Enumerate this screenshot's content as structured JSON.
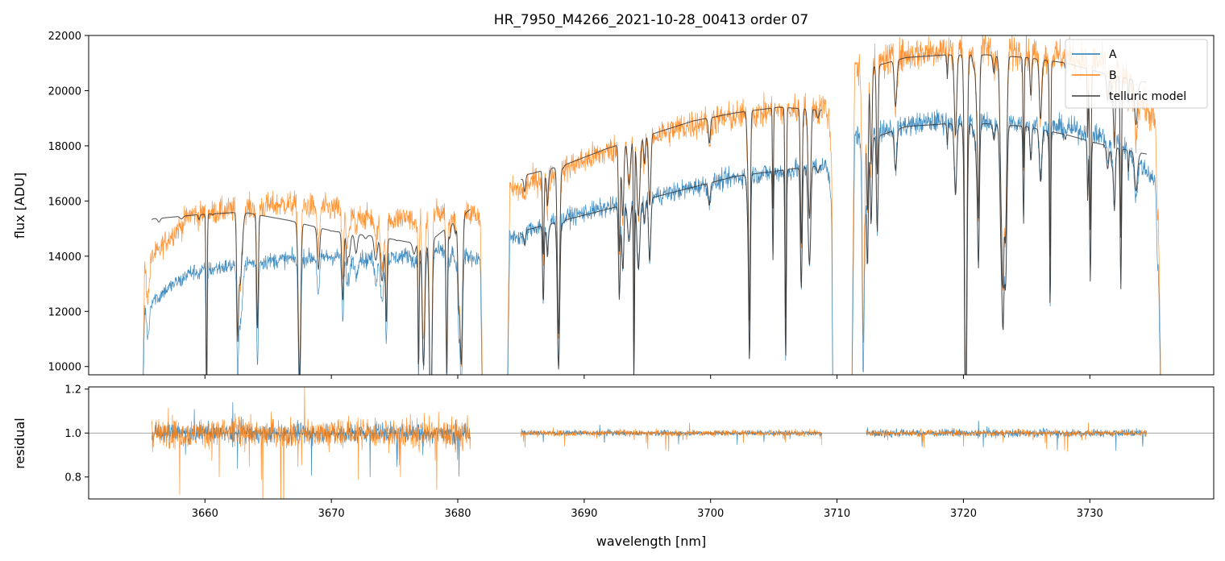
{
  "chart_data": {
    "type": "line",
    "title": "HR_7950_M4266_2021-10-28_00413  order 07",
    "colors": {
      "A": "#1f77b4",
      "B": "#ff7f0e",
      "telluric": "#3a3a3a",
      "refline": "#888888",
      "axis": "#000000"
    },
    "top": {
      "ylabel": "flux [ADU]",
      "xlim": [
        3650.8,
        3739.8
      ],
      "ylim": [
        9700,
        22000
      ],
      "yticks": [
        10000,
        12000,
        14000,
        16000,
        18000,
        20000,
        22000
      ],
      "ytick_labels": [
        "10000",
        "12000",
        "14000",
        "16000",
        "18000",
        "20000",
        "22000"
      ],
      "segments": [
        {
          "x": [
            3654.9,
            3682.1
          ],
          "A_base": [
            12100,
            13400,
            13700,
            13900,
            14000,
            13900,
            14200,
            13900
          ],
          "B_base": [
            13500,
            15500,
            15700,
            15900,
            15700,
            15300,
            15600,
            15500
          ],
          "telluric": [
            15350,
            15500,
            15600,
            15300,
            14900,
            14700,
            14400,
            15700
          ],
          "tel_x": [
            3655.8,
            3681.0
          ]
        },
        {
          "x": [
            3683.8,
            3709.9
          ],
          "A_base": [
            14600,
            15300,
            15700,
            16100,
            16500,
            16900,
            17100,
            17400
          ],
          "B_base": [
            16300,
            17000,
            17700,
            18300,
            18800,
            19100,
            19300,
            19500
          ],
          "telluric_B": [
            16900,
            17300,
            17900,
            18400,
            18900,
            19200,
            19400,
            19300
          ],
          "telluric_A": [
            14900,
            15300,
            15700,
            16100,
            16500,
            16900,
            17100,
            17300
          ],
          "tel_x": [
            3685.0,
            3708.8
          ]
        },
        {
          "x": [
            3711.1,
            3735.7
          ],
          "A_base": [
            18300,
            18700,
            18900,
            18900,
            18800,
            18600,
            18200,
            16500
          ],
          "B_base": [
            20700,
            21200,
            21500,
            21500,
            21400,
            21200,
            20900,
            18500
          ],
          "telluric_B": [
            20800,
            21200,
            21300,
            21300,
            21200,
            21000,
            20600,
            20300
          ],
          "telluric_A": [
            18200,
            18700,
            18800,
            18800,
            18700,
            18400,
            18000,
            17700
          ],
          "tel_x": [
            3712.3,
            3734.5
          ]
        }
      ]
    },
    "bottom": {
      "ylabel": "residual",
      "xlabel": "wavelength [nm]",
      "xlim": [
        3650.8,
        3739.8
      ],
      "ylim": [
        0.7,
        1.21
      ],
      "yticks": [
        0.8,
        1.0,
        1.2
      ],
      "ytick_labels": [
        "0.8",
        "1.0",
        "1.2"
      ],
      "refline": 1.0,
      "segments": [
        {
          "x": [
            3655.8,
            3681.0
          ],
          "noiseA": 0.045,
          "noiseB": 0.07
        },
        {
          "x": [
            3685.0,
            3708.8
          ],
          "noiseA": 0.012,
          "noiseB": 0.015
        },
        {
          "x": [
            3712.3,
            3734.5
          ],
          "noiseA": 0.018,
          "noiseB": 0.015
        }
      ]
    },
    "xticks": [
      3660,
      3670,
      3680,
      3690,
      3700,
      3710,
      3720,
      3730
    ],
    "xtick_labels": [
      "3660",
      "3670",
      "3680",
      "3690",
      "3700",
      "3710",
      "3720",
      "3730"
    ],
    "legend": {
      "position": "top-right",
      "entries": [
        "A",
        "B",
        "telluric model"
      ]
    }
  }
}
